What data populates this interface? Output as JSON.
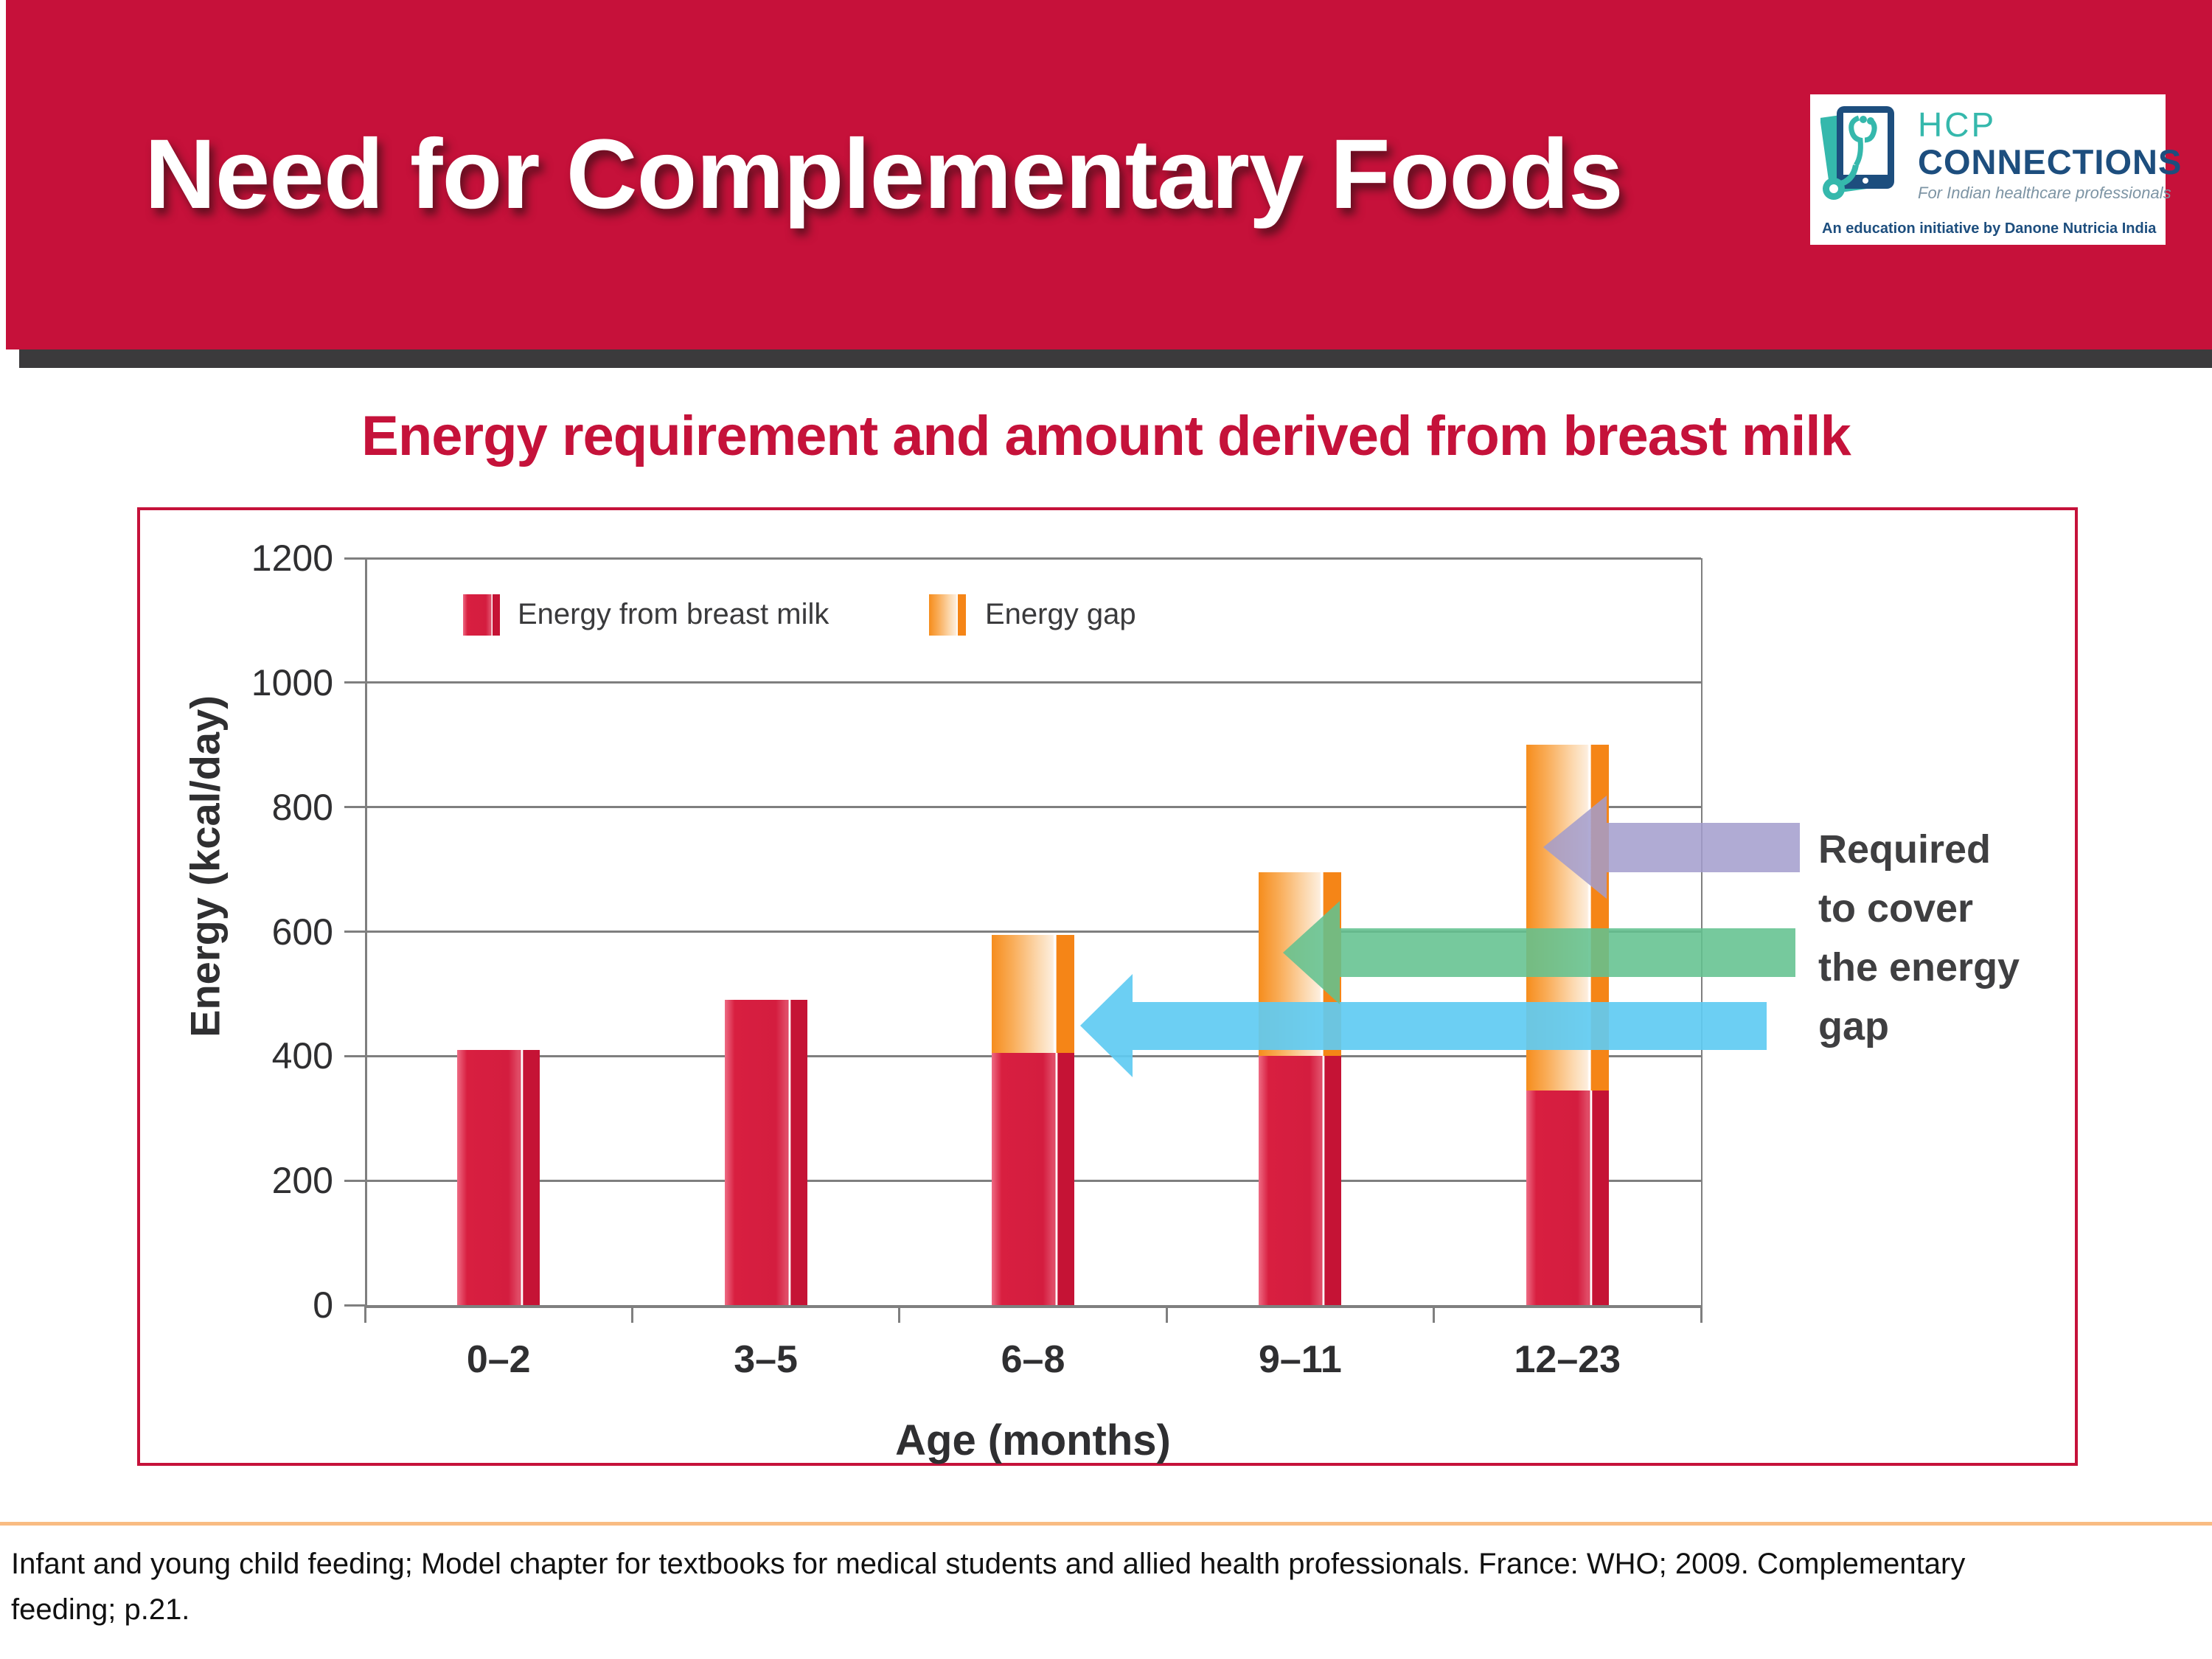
{
  "header": {
    "title": "Need for Complementary Foods"
  },
  "logo": {
    "line1": "HCP",
    "line2": "CONNECTIONS",
    "tagline": "For Indian healthcare professionals",
    "subtext": "An education initiative by Danone Nutricia India",
    "teal": "#35b8ac",
    "navy": "#1d4e7e"
  },
  "chart_header": {
    "title": "Energy requirement and amount derived from breast milk"
  },
  "chart_data": {
    "type": "bar",
    "stacked": true,
    "title": "Energy requirement and amount derived from breast milk",
    "xlabel": "Age (months)",
    "ylabel": "Energy (kcal/day)",
    "ylim": [
      0,
      1200
    ],
    "ytick_step": 200,
    "yticks": [
      1200,
      1000,
      800,
      600,
      400,
      200,
      0
    ],
    "grid": true,
    "legend_position": "top-left-inside",
    "categories": [
      "0–2",
      "3–5",
      "6–8",
      "9–11",
      "12–23"
    ],
    "series": [
      {
        "name": "Energy from breast milk",
        "color": "#d81f40",
        "values": [
          410,
          490,
          405,
          400,
          345
        ]
      },
      {
        "name": "Energy gap",
        "color": "#f58517",
        "values": [
          0,
          0,
          190,
          295,
          555
        ]
      }
    ],
    "totals": [
      410,
      490,
      595,
      695,
      900
    ]
  },
  "annotation": {
    "text": "Required to cover the energy gap",
    "lines": [
      "Required",
      "to cover",
      "the energy",
      "gap"
    ],
    "arrows": [
      {
        "name": "blue-arrow",
        "color": "rgba(95,203,242,0.92)"
      },
      {
        "name": "green-arrow",
        "color": "rgba(99,194,143,0.88)"
      },
      {
        "name": "purple-arrow",
        "color": "rgba(162,156,204,0.85)"
      }
    ]
  },
  "footer": {
    "line1": "Infant and young child feeding; Model chapter for textbooks for medical students and allied health professionals. France: WHO; 2009. Complementary",
    "line2": "feeding; p.21."
  },
  "colors": {
    "banner_red": "#c6113a",
    "dark_separator": "#3b3a3c",
    "chart_border": "#c5123a",
    "chart_title_red": "#c5123a",
    "gridline_gray": "#7f7f7f",
    "bar_red": "#d81f40",
    "bar_orange": "#f58517",
    "footer_rule_orange": "#f9bc83",
    "annotation_text": "#3f3f41"
  }
}
